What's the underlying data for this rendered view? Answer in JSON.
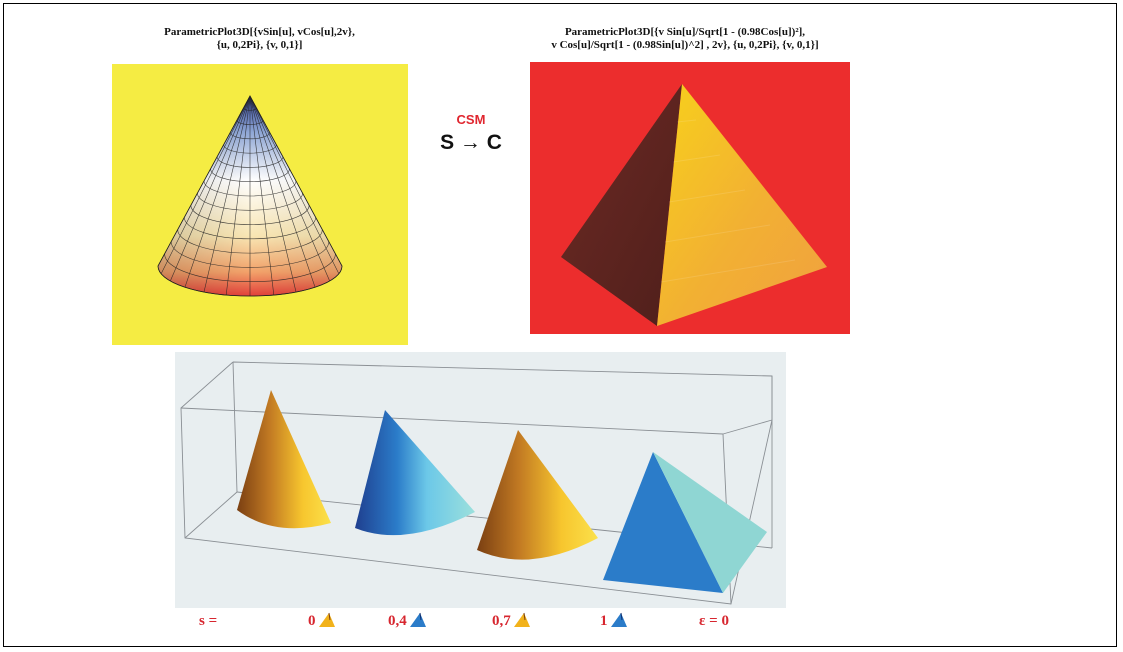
{
  "left_caption": {
    "line1": "ParametricPlot3D[{vSin[u], vCos[u],2v},",
    "line2": "{u, 0,2Pi}, {v, 0,1}]"
  },
  "right_caption": {
    "line1": "ParametricPlot3D[{v Sin[u]/Sqrt[1 - (0.98Cos[u])²],",
    "line2": "v Cos[u]/Sqrt[1 - (0.98Sin[u])^2] , 2v}, {u, 0,2Pi}, {v, 0,1}]"
  },
  "transform": {
    "title": "CSM",
    "arrow_text": "S → C"
  },
  "bottom_labels": {
    "s_label": "s =",
    "v0": "0",
    "v1": "0,4",
    "v2": "0,7",
    "v3": "1",
    "epsilon": "ε = 0"
  },
  "colors": {
    "left_panel_bg": "#f5ec43",
    "right_panel_bg": "#ec2d2d",
    "bottom_panel_bg": "#e8eef0",
    "label_red": "#d7262f",
    "cone_orange": "#f2b21a",
    "cone_blue": "#2b7cc9"
  },
  "icons": [
    "cone-icon-orange",
    "cone-icon-blue"
  ]
}
